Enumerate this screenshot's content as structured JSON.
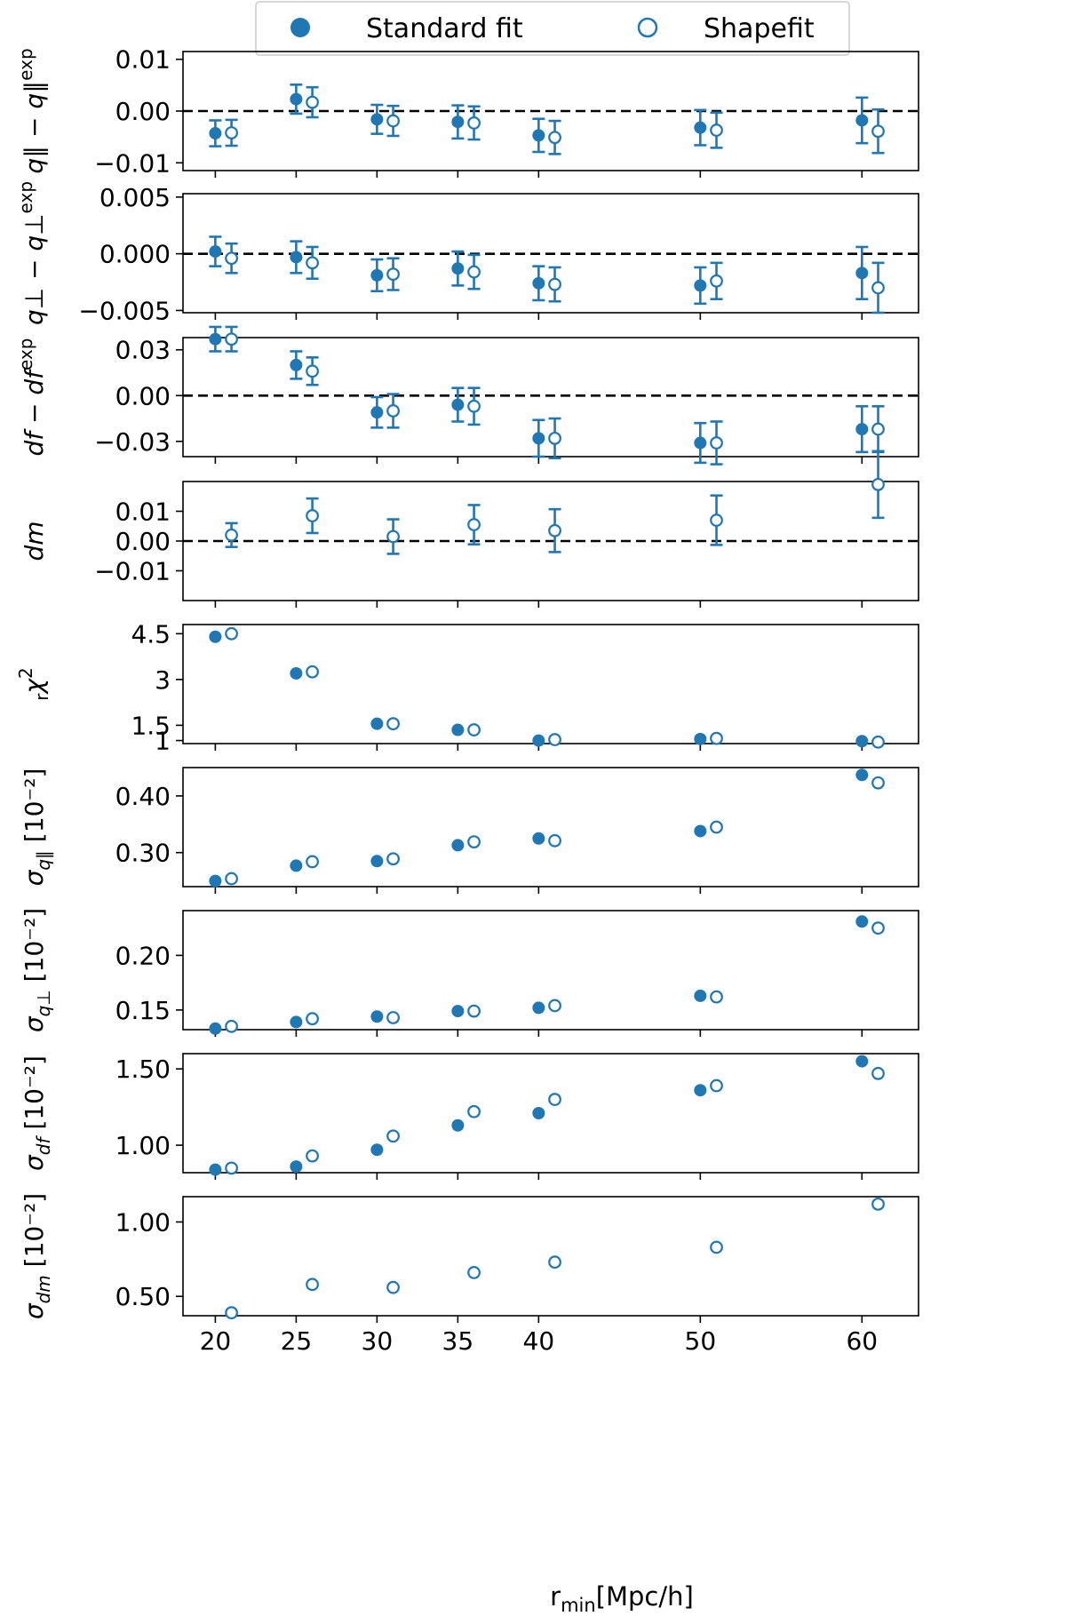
{
  "legend": {
    "standard_label": "Standard fit",
    "shapefit_label": "Shapefit"
  },
  "colors": {
    "series": "#1f77b4",
    "zero_line": "#000000"
  },
  "chart_data": {
    "type": "scatter",
    "xlabel_main": "r",
    "xlabel_sub": "min",
    "xlabel_unit": "[Mpc/h]",
    "xlim": [
      18,
      63.5
    ],
    "xticks": [
      20,
      25,
      30,
      35,
      40,
      50,
      60
    ],
    "xtick_labels": [
      "20",
      "25",
      "30",
      "35",
      "40",
      "50",
      "60"
    ],
    "x_standard": [
      20,
      25,
      30,
      35,
      40,
      50,
      60
    ],
    "x_shapefit": [
      21,
      26,
      31,
      36,
      41,
      51,
      61
    ],
    "panels": [
      {
        "key": "dqpar",
        "ylabel": "q∥ − q∥^exp",
        "ylim": [
          -0.0115,
          0.0115
        ],
        "yticks": [
          0.01,
          0.0,
          -0.01
        ],
        "ytick_labels": [
          "0.01",
          "0.00",
          "−0.01"
        ],
        "zero_line": true,
        "standard": {
          "y": [
            -0.0043,
            0.0023,
            -0.0016,
            -0.0021,
            -0.0047,
            -0.0032,
            -0.0018
          ],
          "err": [
            0.0025,
            0.0028,
            0.0028,
            0.0032,
            0.0032,
            0.0034,
            0.0044
          ]
        },
        "shapefit": {
          "y": [
            -0.0042,
            0.0017,
            -0.0019,
            -0.0023,
            -0.0051,
            -0.0037,
            -0.0039
          ],
          "err": [
            0.0025,
            0.0029,
            0.0029,
            0.0032,
            0.0032,
            0.0034,
            0.0042
          ]
        }
      },
      {
        "key": "dqperp",
        "ylabel": "q⊥ − q⊥^exp",
        "ylim": [
          -0.0052,
          0.0053
        ],
        "yticks": [
          0.005,
          0.0,
          -0.005
        ],
        "ytick_labels": [
          "0.005",
          "0.000",
          "−0.005"
        ],
        "zero_line": true,
        "standard": {
          "y": [
            0.0002,
            -0.0003,
            -0.0019,
            -0.0013,
            -0.0026,
            -0.0028,
            -0.0017
          ],
          "err": [
            0.0013,
            0.0014,
            0.0014,
            0.0015,
            0.0015,
            0.0016,
            0.0023
          ]
        },
        "shapefit": {
          "y": [
            -0.0004,
            -0.0008,
            -0.0018,
            -0.0016,
            -0.0027,
            -0.0024,
            -0.003
          ],
          "err": [
            0.0013,
            0.0014,
            0.0014,
            0.0015,
            0.0015,
            0.0016,
            0.0022
          ]
        }
      },
      {
        "key": "df",
        "ylabel": "df − df^exp",
        "ylim": [
          -0.04,
          0.038
        ],
        "yticks": [
          0.03,
          0.0,
          -0.03
        ],
        "ytick_labels": [
          "0.03",
          "0.00",
          "−0.03"
        ],
        "zero_line": true,
        "standard": {
          "y": [
            0.037,
            0.02,
            -0.011,
            -0.006,
            -0.028,
            -0.031,
            -0.022
          ],
          "err": [
            0.008,
            0.009,
            0.01,
            0.011,
            0.012,
            0.013,
            0.015
          ]
        },
        "shapefit": {
          "y": [
            0.037,
            0.016,
            -0.01,
            -0.007,
            -0.028,
            -0.031,
            -0.022
          ],
          "err": [
            0.008,
            0.009,
            0.011,
            0.012,
            0.013,
            0.014,
            0.015
          ]
        }
      },
      {
        "key": "dm",
        "ylabel": "dm",
        "ylim": [
          -0.02,
          0.02
        ],
        "yticks": [
          0.01,
          0.0,
          -0.01
        ],
        "ytick_labels": [
          "0.01",
          "0.00",
          "−0.01"
        ],
        "zero_line": true,
        "standard": null,
        "shapefit": {
          "y": [
            0.002,
            0.0085,
            0.0015,
            0.0055,
            0.0035,
            0.007,
            0.019
          ],
          "err": [
            0.004,
            0.0058,
            0.0058,
            0.0066,
            0.0072,
            0.0083,
            0.0112
          ]
        }
      },
      {
        "key": "rchi2",
        "ylabel": "rχ²",
        "ylim": [
          0.9,
          4.8
        ],
        "yticks": [
          4.5,
          3,
          1.5,
          1
        ],
        "ytick_labels": [
          "4.5",
          "3",
          "1.5",
          "1"
        ],
        "zero_line": false,
        "standard": {
          "y": [
            4.4,
            3.2,
            1.55,
            1.35,
            1.0,
            1.05,
            0.98
          ],
          "err": null
        },
        "shapefit": {
          "y": [
            4.5,
            3.25,
            1.55,
            1.35,
            1.03,
            1.07,
            0.95
          ],
          "err": null
        }
      },
      {
        "key": "sig_qpar",
        "ylabel": "σ q∥ [10⁻²]",
        "ylim": [
          0.24,
          0.45
        ],
        "yticks": [
          0.4,
          0.3
        ],
        "ytick_labels": [
          "0.40",
          "0.30"
        ],
        "zero_line": false,
        "standard": {
          "y": [
            0.25,
            0.277,
            0.285,
            0.313,
            0.325,
            0.338,
            0.437
          ],
          "err": null
        },
        "shapefit": {
          "y": [
            0.254,
            0.284,
            0.289,
            0.319,
            0.321,
            0.345,
            0.423
          ],
          "err": null
        }
      },
      {
        "key": "sig_qperp",
        "ylabel": "σ q⊥ [10⁻²]",
        "ylim": [
          0.132,
          0.241
        ],
        "yticks": [
          0.2,
          0.15
        ],
        "ytick_labels": [
          "0.20",
          "0.15"
        ],
        "zero_line": false,
        "standard": {
          "y": [
            0.133,
            0.139,
            0.144,
            0.149,
            0.152,
            0.163,
            0.231
          ],
          "err": null
        },
        "shapefit": {
          "y": [
            0.135,
            0.142,
            0.143,
            0.149,
            0.154,
            0.162,
            0.225
          ],
          "err": null
        }
      },
      {
        "key": "sig_df",
        "ylabel": "σ df [10⁻²]",
        "ylim": [
          0.82,
          1.6
        ],
        "yticks": [
          1.5,
          1.0
        ],
        "ytick_labels": [
          "1.50",
          "1.00"
        ],
        "zero_line": false,
        "standard": {
          "y": [
            0.84,
            0.86,
            0.97,
            1.13,
            1.21,
            1.36,
            1.55
          ],
          "err": null
        },
        "shapefit": {
          "y": [
            0.85,
            0.93,
            1.06,
            1.22,
            1.3,
            1.39,
            1.47
          ],
          "err": null
        }
      },
      {
        "key": "sig_dm",
        "ylabel": "σ dm [10⁻²]",
        "ylim": [
          0.37,
          1.17
        ],
        "yticks": [
          1.0,
          0.5
        ],
        "ytick_labels": [
          "1.00",
          "0.50"
        ],
        "zero_line": false,
        "standard": null,
        "shapefit": {
          "y": [
            0.39,
            0.58,
            0.56,
            0.66,
            0.73,
            0.83,
            1.12
          ],
          "err": null
        }
      }
    ]
  }
}
